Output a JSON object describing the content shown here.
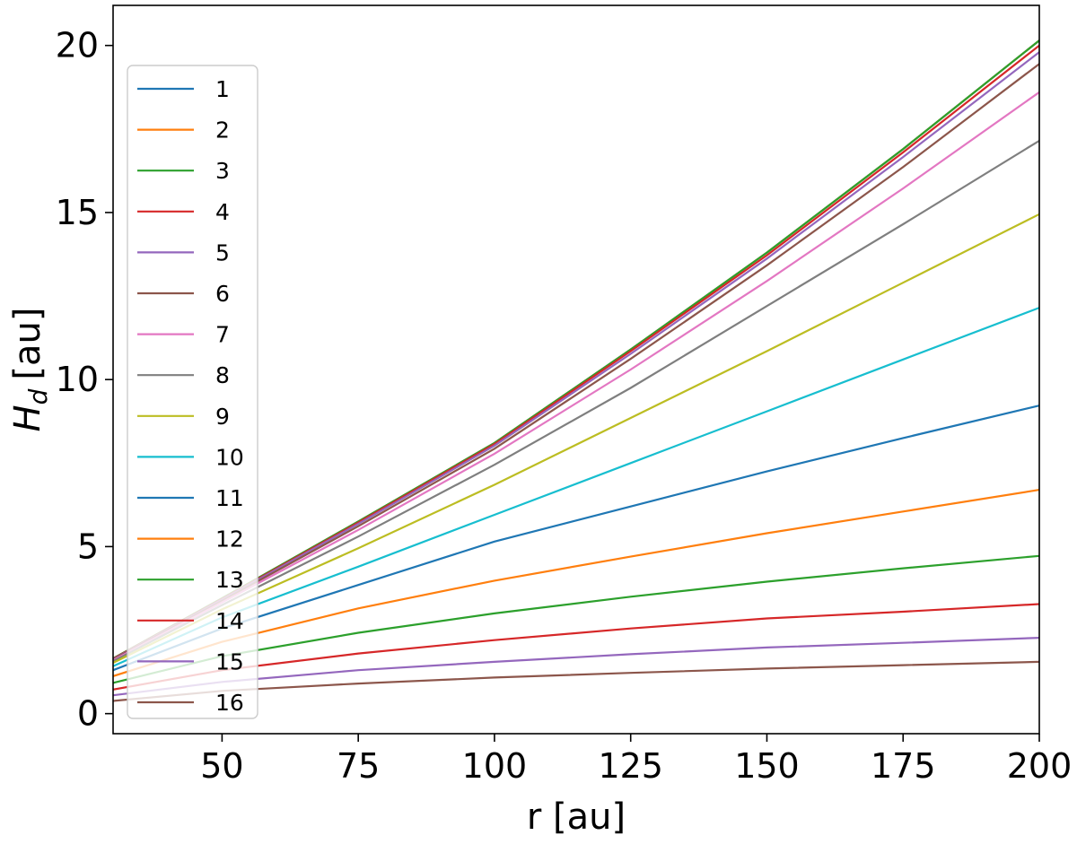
{
  "chart_data": {
    "type": "line",
    "title": "",
    "xlabel": "r [au]",
    "ylabel_main": "H",
    "ylabel_sub": "d",
    "ylabel_unit": "[au]",
    "xlim": [
      30,
      200
    ],
    "ylim": [
      -0.6,
      21.2
    ],
    "xticks": [
      50,
      75,
      100,
      125,
      150,
      175,
      200
    ],
    "xtick_labels": [
      "50",
      "75",
      "100",
      "125",
      "150",
      "175",
      "200"
    ],
    "yticks": [
      0,
      5,
      10,
      15,
      20
    ],
    "ytick_labels": [
      "0",
      "5",
      "10",
      "15",
      "20"
    ],
    "grid": false,
    "legend_position": "left",
    "x": [
      30,
      50,
      75,
      100,
      125,
      150,
      175,
      200
    ],
    "series": [
      {
        "name": "1",
        "color": "#1f77b4",
        "values": [
          1.65,
          3.45,
          5.75,
          8.1,
          10.9,
          13.8,
          16.9,
          20.15
        ]
      },
      {
        "name": "2",
        "color": "#ff7f0e",
        "values": [
          1.65,
          3.45,
          5.75,
          8.1,
          10.9,
          13.8,
          16.9,
          20.15
        ]
      },
      {
        "name": "3",
        "color": "#2ca02c",
        "values": [
          1.65,
          3.45,
          5.75,
          8.1,
          10.9,
          13.8,
          16.9,
          20.15
        ]
      },
      {
        "name": "4",
        "color": "#d62728",
        "values": [
          1.64,
          3.43,
          5.72,
          8.07,
          10.85,
          13.72,
          16.8,
          20.0
        ]
      },
      {
        "name": "5",
        "color": "#9467bd",
        "values": [
          1.63,
          3.41,
          5.68,
          8.02,
          10.77,
          13.62,
          16.66,
          19.8
        ]
      },
      {
        "name": "6",
        "color": "#8c564b",
        "values": [
          1.62,
          3.38,
          5.61,
          7.93,
          10.62,
          13.42,
          16.36,
          19.45
        ]
      },
      {
        "name": "7",
        "color": "#e377c2",
        "values": [
          1.6,
          3.33,
          5.5,
          7.78,
          10.3,
          12.95,
          15.72,
          18.6
        ]
      },
      {
        "name": "8",
        "color": "#7f7f7f",
        "values": [
          1.57,
          3.25,
          5.3,
          7.45,
          9.75,
          12.2,
          14.65,
          17.15
        ]
      },
      {
        "name": "9",
        "color": "#bcbd22",
        "values": [
          1.52,
          3.12,
          4.95,
          6.85,
          8.85,
          10.85,
          12.9,
          14.95
        ]
      },
      {
        "name": "10",
        "color": "#17becf",
        "values": [
          1.42,
          2.88,
          4.4,
          5.95,
          7.5,
          9.05,
          10.6,
          12.15
        ]
      },
      {
        "name": "11",
        "color": "#1f77b4",
        "values": [
          1.3,
          2.55,
          3.85,
          5.15,
          6.2,
          7.25,
          8.25,
          9.22
        ]
      },
      {
        "name": "12",
        "color": "#ff7f0e",
        "values": [
          1.12,
          2.15,
          3.15,
          3.98,
          4.7,
          5.4,
          6.05,
          6.7
        ]
      },
      {
        "name": "13",
        "color": "#2ca02c",
        "values": [
          0.92,
          1.72,
          2.42,
          3.0,
          3.5,
          3.95,
          4.35,
          4.72
        ]
      },
      {
        "name": "14",
        "color": "#d62728",
        "values": [
          0.72,
          1.3,
          1.8,
          2.2,
          2.55,
          2.85,
          3.05,
          3.28
        ]
      },
      {
        "name": "15",
        "color": "#9467bd",
        "values": [
          0.55,
          0.95,
          1.3,
          1.55,
          1.78,
          1.98,
          2.12,
          2.27
        ]
      },
      {
        "name": "16",
        "color": "#8c564b",
        "values": [
          0.38,
          0.68,
          0.9,
          1.08,
          1.22,
          1.35,
          1.45,
          1.55
        ]
      }
    ]
  }
}
